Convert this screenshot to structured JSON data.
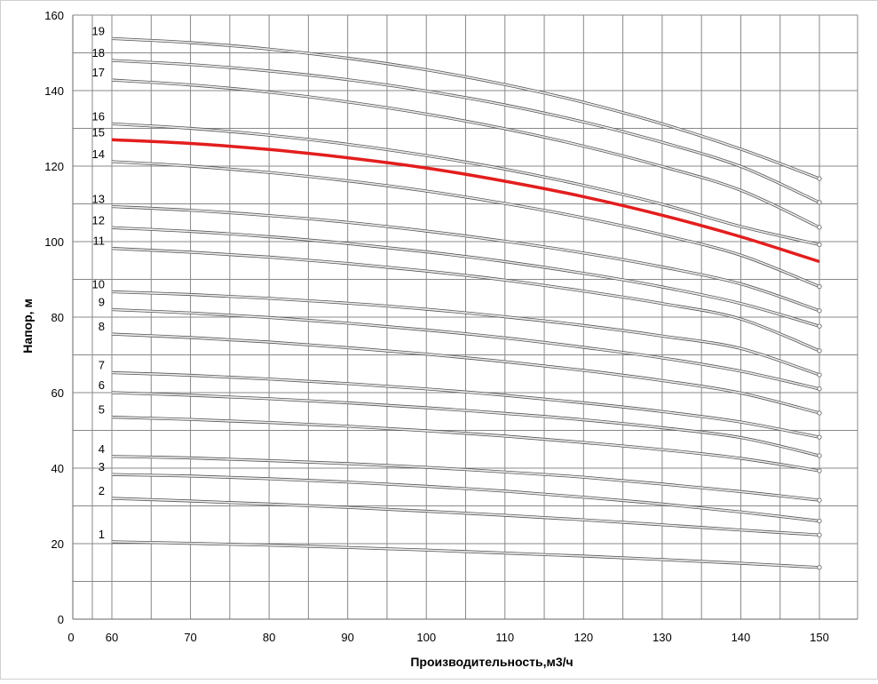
{
  "chart_data": {
    "type": "line",
    "title": "",
    "xlabel": "Производительность,м3/ч",
    "ylabel": "Напор, м",
    "xlim": [
      0,
      150
    ],
    "ylim": [
      0,
      160
    ],
    "x_tick_labels": [
      "0",
      "60",
      "70",
      "80",
      "90",
      "100",
      "110",
      "120",
      "130",
      "140",
      "150"
    ],
    "y_tick_labels": [
      "0",
      "20",
      "40",
      "60",
      "80",
      "100",
      "120",
      "140",
      "160"
    ],
    "grid": true,
    "legend": "none",
    "colors": {
      "default": "#b8b8b8",
      "highlight": "#e31e1e",
      "grid": "#888888"
    },
    "x": [
      60,
      70,
      80,
      90,
      100,
      110,
      120,
      130,
      140,
      150
    ],
    "series": [
      {
        "name": "1",
        "values": [
          20.5,
          20.1,
          19.6,
          19.0,
          18.3,
          17.5,
          16.7,
          15.8,
          14.8,
          13.7
        ]
      },
      {
        "name": "2",
        "values": [
          32.0,
          31.3,
          30.5,
          29.6,
          28.6,
          27.5,
          26.3,
          25.0,
          23.6,
          22.3
        ]
      },
      {
        "name": "3",
        "values": [
          38.3,
          37.9,
          37.2,
          36.3,
          35.2,
          33.9,
          32.3,
          30.5,
          28.4,
          26.0
        ]
      },
      {
        "name": "4",
        "values": [
          43.1,
          42.7,
          42.0,
          41.2,
          40.2,
          39.0,
          37.6,
          35.8,
          33.8,
          31.5
        ]
      },
      {
        "name": "5",
        "values": [
          53.5,
          52.9,
          52.1,
          51.1,
          49.9,
          48.5,
          46.8,
          44.9,
          42.6,
          39.3
        ]
      },
      {
        "name": "6",
        "values": [
          60.0,
          59.3,
          58.4,
          57.3,
          56.0,
          54.5,
          52.8,
          50.7,
          48.1,
          43.3
        ]
      },
      {
        "name": "7",
        "values": [
          65.3,
          64.6,
          63.6,
          62.4,
          61.0,
          59.3,
          57.3,
          55.0,
          52.2,
          48.2
        ]
      },
      {
        "name": "8",
        "values": [
          75.5,
          74.6,
          73.4,
          71.9,
          70.2,
          68.2,
          65.9,
          63.2,
          59.9,
          54.6
        ]
      },
      {
        "name": "9",
        "values": [
          82.0,
          81.1,
          79.9,
          78.4,
          76.6,
          74.5,
          72.0,
          69.2,
          65.7,
          61.0
        ]
      },
      {
        "name": "10",
        "values": [
          86.7,
          86.0,
          85.0,
          83.7,
          82.1,
          80.1,
          77.8,
          75.0,
          71.7,
          64.7
        ]
      },
      {
        "name": "11",
        "values": [
          98.2,
          97.2,
          95.9,
          94.2,
          92.2,
          89.8,
          86.9,
          83.6,
          79.5,
          71.1
        ]
      },
      {
        "name": "12",
        "values": [
          103.7,
          102.7,
          101.3,
          99.5,
          97.3,
          94.7,
          91.6,
          88.0,
          83.6,
          77.6
        ]
      },
      {
        "name": "13",
        "values": [
          109.3,
          108.3,
          106.9,
          105.1,
          102.8,
          100.1,
          97.0,
          93.3,
          88.8,
          81.7
        ]
      },
      {
        "name": "14",
        "values": [
          121.2,
          120.0,
          118.3,
          116.1,
          113.4,
          110.1,
          106.3,
          101.8,
          96.4,
          88.1
        ]
      },
      {
        "name": "15",
        "values": [
          127.0,
          126.0,
          124.4,
          122.2,
          119.5,
          116.0,
          111.9,
          107.0,
          101.3,
          94.7
        ]
      },
      {
        "name": "16",
        "values": [
          131.2,
          130.0,
          128.2,
          125.8,
          122.8,
          119.2,
          114.9,
          109.9,
          104.0,
          99.2
        ]
      },
      {
        "name": "17",
        "values": [
          142.8,
          141.5,
          139.6,
          137.0,
          133.8,
          129.9,
          125.3,
          119.9,
          113.6,
          103.8
        ]
      },
      {
        "name": "18",
        "values": [
          148.0,
          146.9,
          145.2,
          142.9,
          139.9,
          136.2,
          131.7,
          126.3,
          119.9,
          110.4
        ]
      },
      {
        "name": "19",
        "values": [
          153.8,
          152.7,
          151.0,
          148.6,
          145.5,
          141.6,
          136.9,
          131.2,
          124.5,
          116.7
        ]
      }
    ],
    "highlight_series": "15"
  }
}
